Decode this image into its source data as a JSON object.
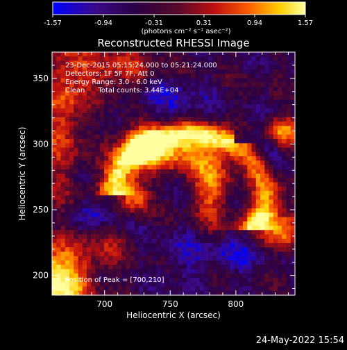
{
  "colorbar": {
    "ticks": [
      "-1.57",
      "-0.94",
      "-0.31",
      "0.31",
      "0.94",
      "1.57"
    ],
    "range": [
      -1.57,
      1.57
    ],
    "unit_label": "(photons cm⁻² s⁻¹ asec⁻²)",
    "colors": [
      "#0000ff",
      "#3a0a8a",
      "#2a0044",
      "#5a0a2a",
      "#c01010",
      "#ff6000",
      "#ffd000",
      "#ffffa0"
    ]
  },
  "chart_data": {
    "type": "heatmap",
    "title": "Reconstructed RHESSI Image",
    "xlabel": "Heliocentric X (arcsec)",
    "ylabel": "Heliocentric Y (arcsec)",
    "xlim": [
      660,
      845
    ],
    "ylim": [
      185,
      370
    ],
    "x_ticks": [
      "700",
      "750",
      "800"
    ],
    "y_ticks": [
      "200",
      "250",
      "300",
      "350"
    ],
    "annotations": [
      "23-Dec-2015 05:15:24.000 to 05:21:24.000",
      "Detectors: 1F 5F 7F, Att 0",
      "Energy Range: 3.0 - 6.0 keV",
      "Clean      Total counts: 3.44E+04"
    ],
    "peak_label": "Position of Peak = [700,210]",
    "peak_position": [
      700,
      210
    ]
  },
  "footer": {
    "timestamp": "24-May-2022 15:54"
  }
}
